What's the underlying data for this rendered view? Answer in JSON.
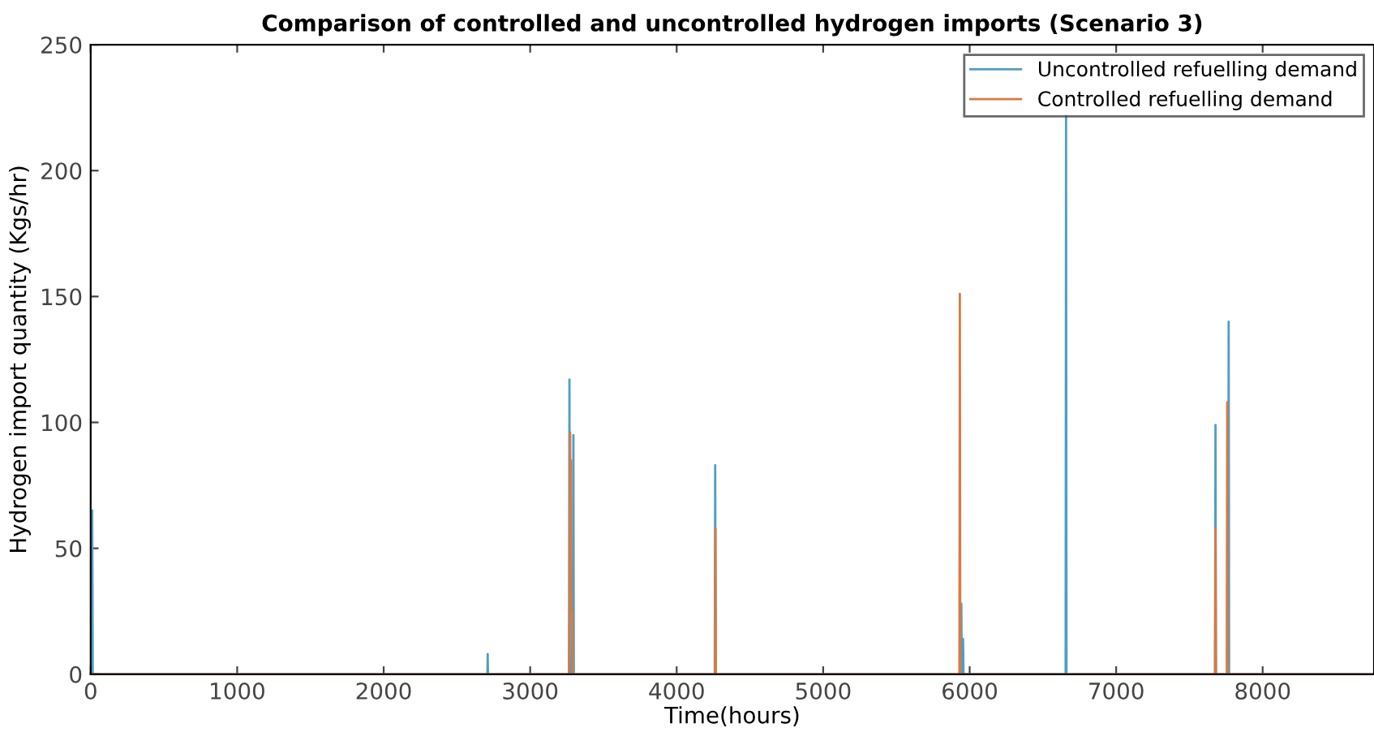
{
  "chart_data": {
    "type": "line",
    "title": "Comparison of controlled and uncontrolled hydrogen imports (Scenario 3)",
    "xlabel": "Time(hours)",
    "ylabel": "Hydrogen import quantity (Kgs/hr)",
    "series": [
      {
        "name": "Uncontrolled refuelling demand",
        "color": "#4f9ec6",
        "x": [
          10,
          12,
          14,
          2708,
          2710,
          2712,
          3265,
          3268,
          3271,
          3286,
          3289,
          3292,
          3295,
          3298,
          4260,
          4263,
          4266,
          5940,
          5943,
          5946,
          5952,
          5955,
          5958,
          6655,
          6658,
          6661,
          7675,
          7678,
          7681,
          7765,
          7768,
          7771,
          8760
        ],
        "values": [
          65,
          40,
          0,
          0,
          8,
          0,
          0,
          117,
          0,
          0,
          42,
          0,
          95,
          0,
          0,
          83,
          0,
          0,
          28,
          0,
          0,
          14,
          0,
          0,
          222,
          0,
          0,
          99,
          0,
          0,
          140,
          0,
          0
        ]
      },
      {
        "name": "Controlled refuelling demand",
        "color": "#d97a42",
        "x": [
          0,
          3265,
          3270,
          3273,
          3276,
          3279,
          3282,
          3285,
          3288,
          3291,
          4262,
          4265,
          4268,
          5930,
          5933,
          5936,
          7675,
          7678,
          7681,
          7755,
          7758,
          7761,
          8760
        ],
        "values": [
          0,
          0,
          25,
          96,
          25,
          85,
          25,
          25,
          25,
          0,
          0,
          58,
          0,
          0,
          151,
          0,
          0,
          58,
          0,
          0,
          108,
          0,
          0
        ]
      }
    ],
    "xlim": [
      0,
      8760
    ],
    "ylim": [
      0,
      250
    ],
    "xticks": [
      0,
      1000,
      2000,
      3000,
      4000,
      5000,
      6000,
      7000,
      8000
    ],
    "yticks": [
      0,
      50,
      100,
      150,
      200,
      250
    ],
    "legend": "top right",
    "grid": false
  }
}
